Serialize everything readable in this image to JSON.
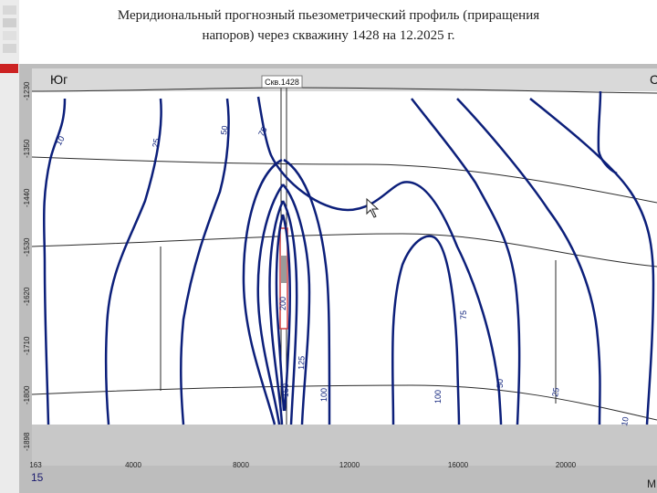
{
  "title": {
    "line1": "Меридиональный прогнозный пьезометрический профиль (приращения",
    "line2": "напоров) через скважину 1428 на 12.2025 г."
  },
  "profile": {
    "south_label": "Юг",
    "north_label_fragment": "С",
    "well_label": "Скв.1428",
    "x_axis_ticks": [
      "163",
      "4000",
      "8000",
      "12000",
      "16000",
      "20000"
    ],
    "x_axis_fragment": "М",
    "y_axis_ticks": [
      "-1230",
      "-1350",
      "-1440",
      "-1530",
      "-1620",
      "-1710",
      "-1800",
      "-1898"
    ],
    "contour_labels": [
      "10",
      "25",
      "50",
      "75",
      "100",
      "125",
      "150",
      "200",
      "75",
      "100",
      "50",
      "25",
      "10"
    ]
  },
  "page_number": "15",
  "colors": {
    "contour": "#0c1f7a",
    "layer_line": "#2a2a2a",
    "background_section": "#ffffff",
    "bottom_band": "#c8c8c8",
    "frame": "#bdbdbd",
    "accent_red": "#cc2222",
    "well_marker": "#d24040"
  }
}
